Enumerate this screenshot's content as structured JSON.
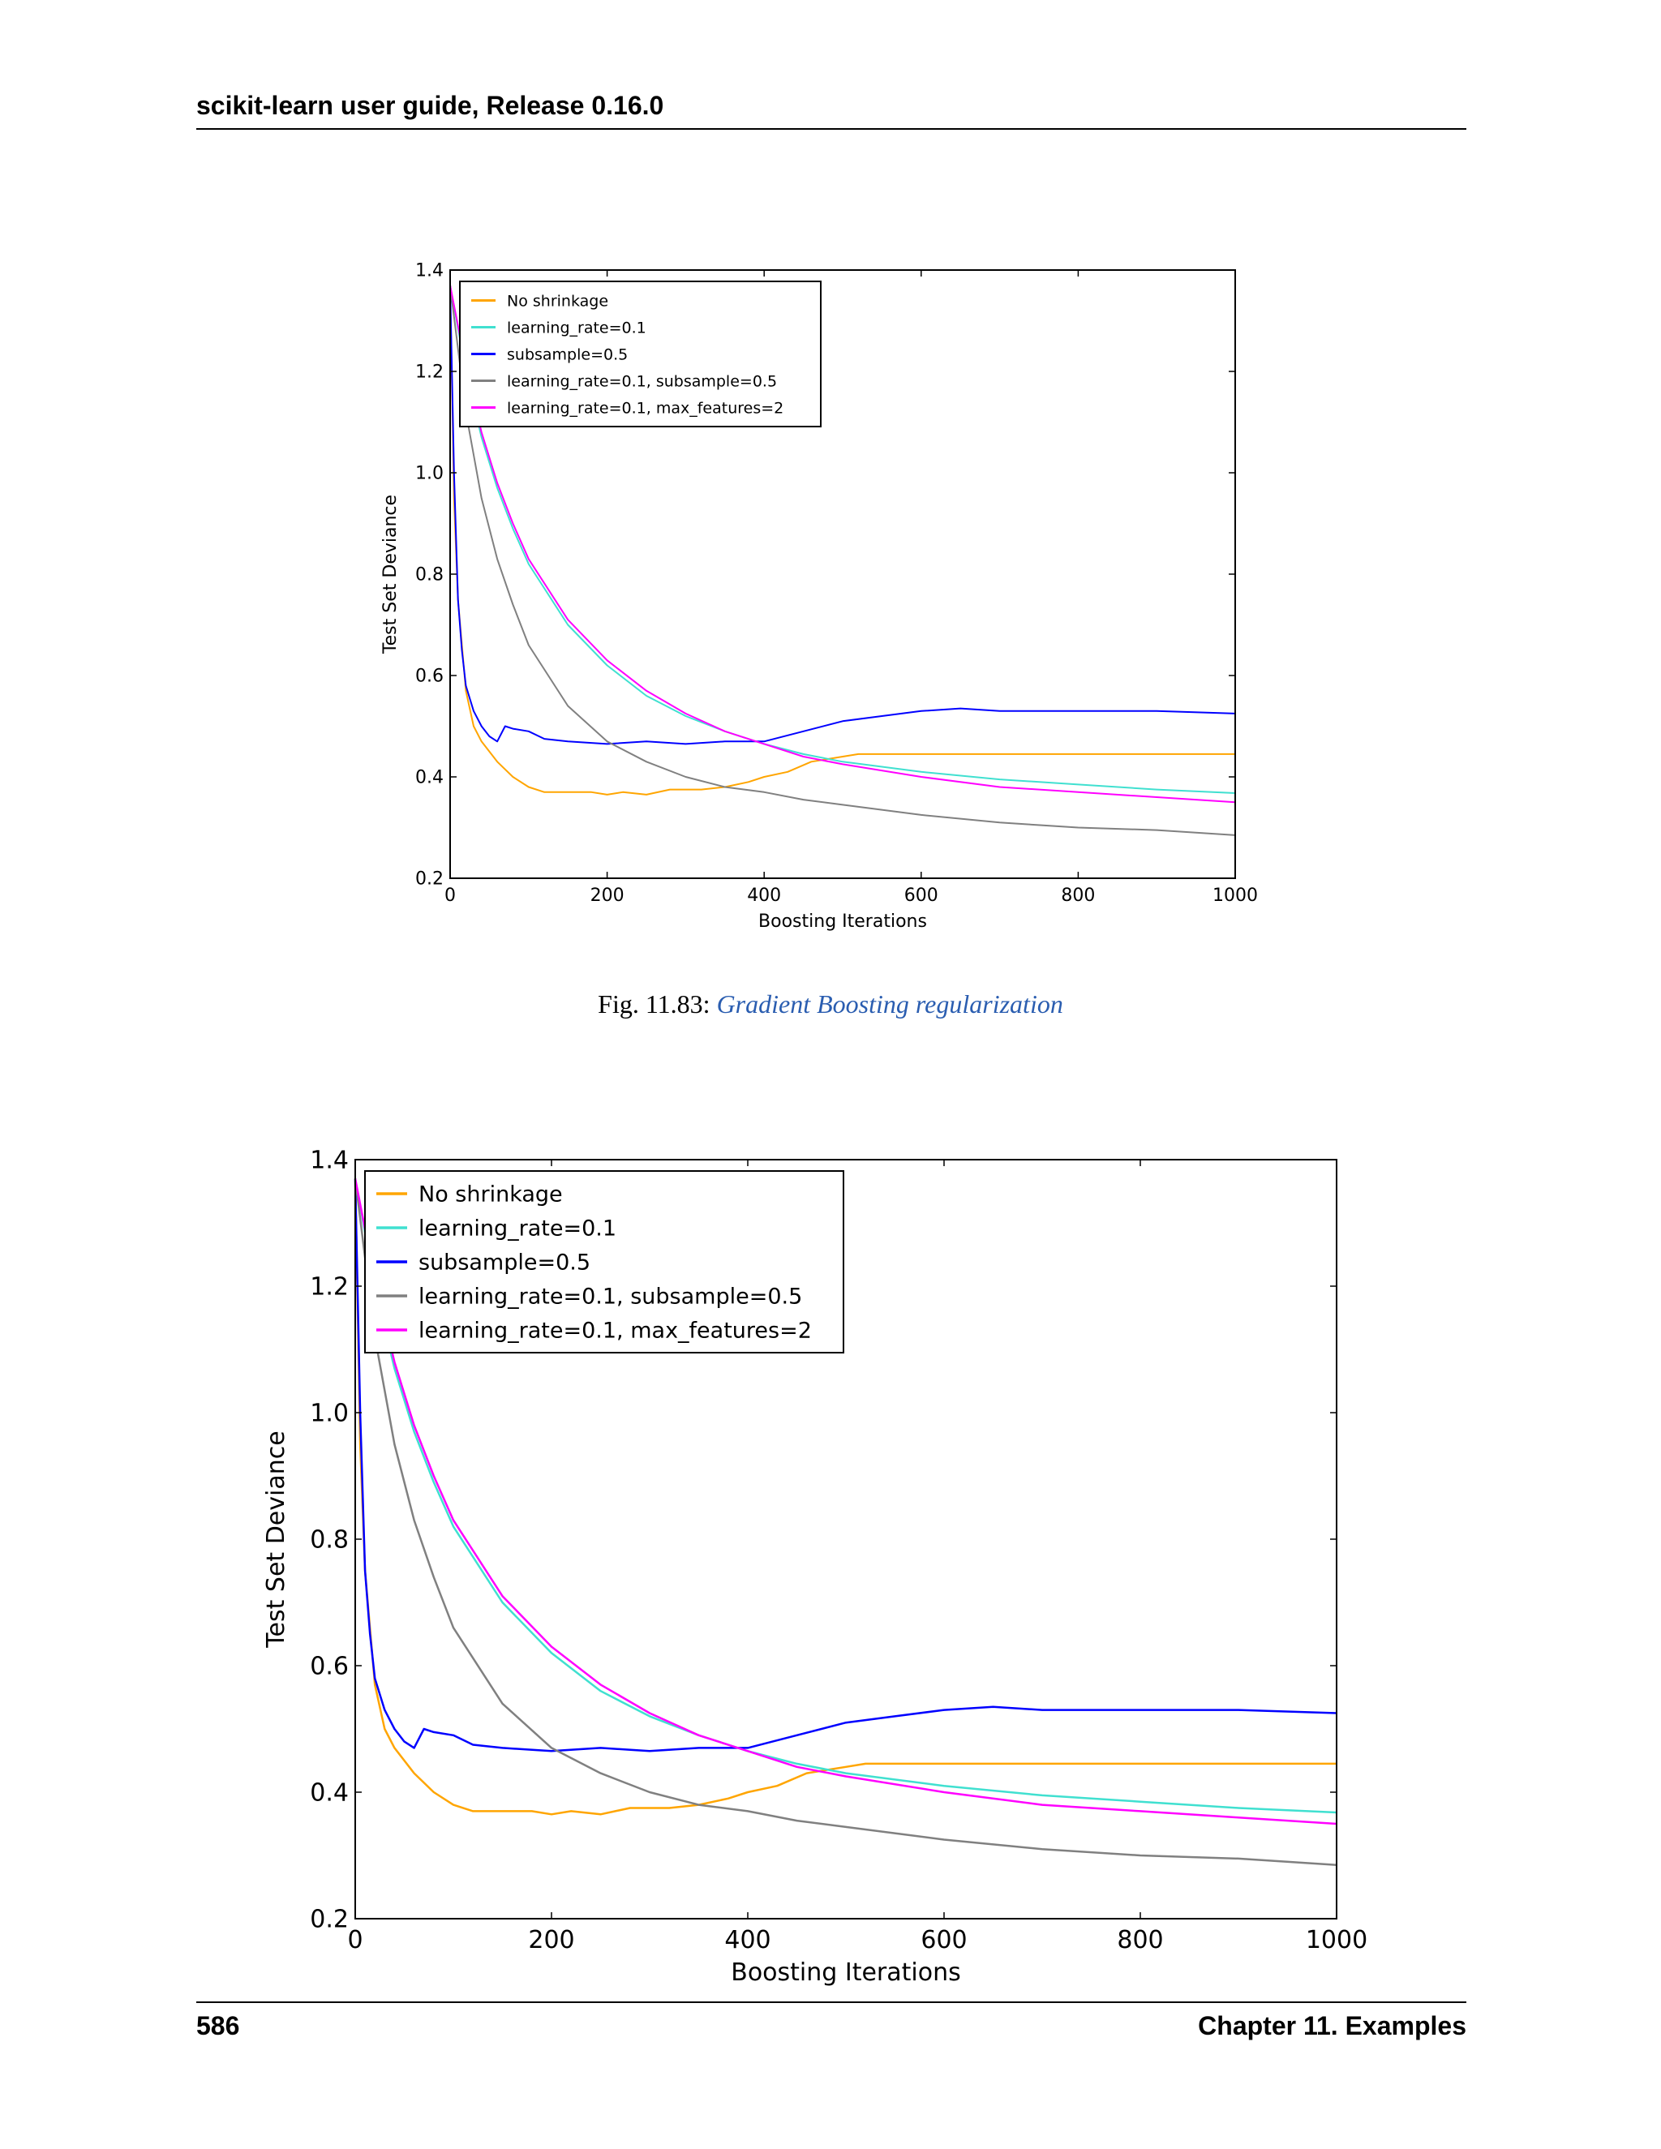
{
  "header": {
    "title": "scikit-learn user guide, Release 0.16.0"
  },
  "caption": {
    "prefix": "Fig.   11.83: ",
    "link": "Gradient Boosting regularization"
  },
  "footer": {
    "page": "586",
    "chapter": "Chapter 11.  Examples"
  },
  "colors": {
    "no_shrinkage": "#ffa500",
    "lr": "#40e0d0",
    "subsample": "#0000ff",
    "lr_subsample": "#808080",
    "lr_maxfeat": "#ff00ff"
  },
  "chart_data": [
    {
      "type": "line",
      "xlabel": "Boosting Iterations",
      "ylabel": "Test Set Deviance",
      "xlim": [
        0,
        1000
      ],
      "ylim": [
        0.2,
        1.4
      ],
      "xticks": [
        0,
        200,
        400,
        600,
        800,
        1000
      ],
      "yticks": [
        0.2,
        0.4,
        0.6,
        0.8,
        1.0,
        1.2,
        1.4
      ],
      "legend_position": "top-left",
      "grid": false,
      "series": [
        {
          "name": "No shrinkage",
          "color": "#ffa500",
          "x": [
            0,
            5,
            10,
            20,
            30,
            40,
            50,
            60,
            80,
            100,
            120,
            150,
            180,
            200,
            220,
            250,
            280,
            300,
            320,
            350,
            380,
            400,
            430,
            460,
            500,
            520,
            600,
            700,
            800,
            900,
            1000
          ],
          "y": [
            1.37,
            0.95,
            0.75,
            0.57,
            0.5,
            0.47,
            0.45,
            0.43,
            0.4,
            0.38,
            0.37,
            0.37,
            0.37,
            0.365,
            0.37,
            0.365,
            0.375,
            0.375,
            0.375,
            0.38,
            0.39,
            0.4,
            0.41,
            0.43,
            0.44,
            0.445,
            0.445,
            0.445,
            0.445,
            0.445,
            0.445
          ]
        },
        {
          "name": "learning_rate=0.1",
          "color": "#40e0d0",
          "x": [
            0,
            20,
            40,
            60,
            80,
            100,
            150,
            200,
            250,
            300,
            350,
            400,
            450,
            500,
            600,
            700,
            800,
            900,
            1000
          ],
          "y": [
            1.37,
            1.2,
            1.07,
            0.97,
            0.89,
            0.82,
            0.7,
            0.62,
            0.56,
            0.52,
            0.49,
            0.465,
            0.445,
            0.43,
            0.41,
            0.395,
            0.385,
            0.375,
            0.368
          ]
        },
        {
          "name": "subsample=0.5",
          "color": "#0000ff",
          "x": [
            0,
            5,
            10,
            15,
            20,
            30,
            40,
            50,
            60,
            70,
            80,
            100,
            120,
            150,
            200,
            250,
            300,
            350,
            400,
            450,
            500,
            550,
            600,
            650,
            700,
            800,
            900,
            1000
          ],
          "y": [
            1.37,
            1.0,
            0.75,
            0.65,
            0.58,
            0.53,
            0.5,
            0.48,
            0.47,
            0.5,
            0.495,
            0.49,
            0.475,
            0.47,
            0.465,
            0.47,
            0.465,
            0.47,
            0.47,
            0.49,
            0.51,
            0.52,
            0.53,
            0.535,
            0.53,
            0.53,
            0.53,
            0.525
          ]
        },
        {
          "name": "learning_rate=0.1, subsample=0.5",
          "color": "#808080",
          "x": [
            0,
            20,
            40,
            60,
            80,
            100,
            150,
            200,
            250,
            300,
            350,
            400,
            450,
            500,
            600,
            700,
            800,
            900,
            1000
          ],
          "y": [
            1.37,
            1.12,
            0.95,
            0.83,
            0.74,
            0.66,
            0.54,
            0.47,
            0.43,
            0.4,
            0.38,
            0.37,
            0.355,
            0.345,
            0.325,
            0.31,
            0.3,
            0.295,
            0.285
          ]
        },
        {
          "name": "learning_rate=0.1, max_features=2",
          "color": "#ff00ff",
          "x": [
            0,
            20,
            40,
            60,
            80,
            100,
            150,
            200,
            250,
            300,
            350,
            400,
            450,
            500,
            600,
            700,
            800,
            900,
            1000
          ],
          "y": [
            1.37,
            1.21,
            1.08,
            0.98,
            0.9,
            0.83,
            0.71,
            0.63,
            0.57,
            0.525,
            0.49,
            0.465,
            0.44,
            0.425,
            0.4,
            0.38,
            0.37,
            0.36,
            0.35
          ]
        }
      ]
    },
    {
      "type": "line",
      "xlabel": "Boosting Iterations",
      "ylabel": "Test Set Deviance",
      "xlim": [
        0,
        1000
      ],
      "ylim": [
        0.2,
        1.4
      ],
      "xticks": [
        0,
        200,
        400,
        600,
        800,
        1000
      ],
      "yticks": [
        0.2,
        0.4,
        0.6,
        0.8,
        1.0,
        1.2,
        1.4
      ],
      "legend_position": "top-left",
      "grid": false,
      "series": [
        {
          "name": "No shrinkage",
          "color": "#ffa500",
          "x": [
            0,
            5,
            10,
            20,
            30,
            40,
            50,
            60,
            80,
            100,
            120,
            150,
            180,
            200,
            220,
            250,
            280,
            300,
            320,
            350,
            380,
            400,
            430,
            460,
            500,
            520,
            600,
            700,
            800,
            900,
            1000
          ],
          "y": [
            1.37,
            0.95,
            0.75,
            0.57,
            0.5,
            0.47,
            0.45,
            0.43,
            0.4,
            0.38,
            0.37,
            0.37,
            0.37,
            0.365,
            0.37,
            0.365,
            0.375,
            0.375,
            0.375,
            0.38,
            0.39,
            0.4,
            0.41,
            0.43,
            0.44,
            0.445,
            0.445,
            0.445,
            0.445,
            0.445,
            0.445
          ]
        },
        {
          "name": "learning_rate=0.1",
          "color": "#40e0d0",
          "x": [
            0,
            20,
            40,
            60,
            80,
            100,
            150,
            200,
            250,
            300,
            350,
            400,
            450,
            500,
            600,
            700,
            800,
            900,
            1000
          ],
          "y": [
            1.37,
            1.2,
            1.07,
            0.97,
            0.89,
            0.82,
            0.7,
            0.62,
            0.56,
            0.52,
            0.49,
            0.465,
            0.445,
            0.43,
            0.41,
            0.395,
            0.385,
            0.375,
            0.368
          ]
        },
        {
          "name": "subsample=0.5",
          "color": "#0000ff",
          "x": [
            0,
            5,
            10,
            15,
            20,
            30,
            40,
            50,
            60,
            70,
            80,
            100,
            120,
            150,
            200,
            250,
            300,
            350,
            400,
            450,
            500,
            550,
            600,
            650,
            700,
            800,
            900,
            1000
          ],
          "y": [
            1.37,
            1.0,
            0.75,
            0.65,
            0.58,
            0.53,
            0.5,
            0.48,
            0.47,
            0.5,
            0.495,
            0.49,
            0.475,
            0.47,
            0.465,
            0.47,
            0.465,
            0.47,
            0.47,
            0.49,
            0.51,
            0.52,
            0.53,
            0.535,
            0.53,
            0.53,
            0.53,
            0.525
          ]
        },
        {
          "name": "learning_rate=0.1, subsample=0.5",
          "color": "#808080",
          "x": [
            0,
            20,
            40,
            60,
            80,
            100,
            150,
            200,
            250,
            300,
            350,
            400,
            450,
            500,
            600,
            700,
            800,
            900,
            1000
          ],
          "y": [
            1.37,
            1.12,
            0.95,
            0.83,
            0.74,
            0.66,
            0.54,
            0.47,
            0.43,
            0.4,
            0.38,
            0.37,
            0.355,
            0.345,
            0.325,
            0.31,
            0.3,
            0.295,
            0.285
          ]
        },
        {
          "name": "learning_rate=0.1, max_features=2",
          "color": "#ff00ff",
          "x": [
            0,
            20,
            40,
            60,
            80,
            100,
            150,
            200,
            250,
            300,
            350,
            400,
            450,
            500,
            600,
            700,
            800,
            900,
            1000
          ],
          "y": [
            1.37,
            1.21,
            1.08,
            0.98,
            0.9,
            0.83,
            0.71,
            0.63,
            0.57,
            0.525,
            0.49,
            0.465,
            0.44,
            0.425,
            0.4,
            0.38,
            0.37,
            0.36,
            0.35
          ]
        }
      ]
    }
  ]
}
